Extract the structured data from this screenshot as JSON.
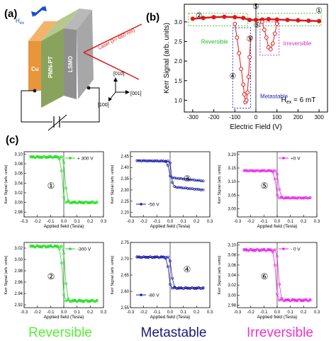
{
  "panel_labels": {
    "a": "(a)",
    "b": "(b)",
    "c": "(c)"
  },
  "panel_a": {
    "hex_label": "H",
    "hex_sub": "ex",
    "layers": [
      "Cu",
      "PMN-PT",
      "LSMO"
    ],
    "laser_label": "Laser (λ= 660 nm)",
    "axes": [
      "[010]",
      "[001]",
      "[100]"
    ]
  },
  "panel_b_chart": {
    "type": "scatter",
    "xlabel": "Electric Field (V)",
    "ylabel": "Kerr Signal (arb. units)",
    "xticks": [
      "-300",
      "-200",
      "-100",
      "0",
      "100",
      "200",
      "300"
    ],
    "yticks": [
      "1.0",
      "1.5",
      "2.0",
      "2.5",
      "3.0"
    ],
    "xlim": [
      -340,
      340
    ],
    "ylim": [
      0.7,
      3.45
    ],
    "annotation": "H",
    "annotation_sub": "ex",
    "annotation_value": " = 6 mT",
    "labels": {
      "reversible": "Reversible",
      "irreversible": "Irreversible",
      "metastable": "Metastable"
    },
    "point_markers": [
      "①",
      "②",
      "③",
      "④",
      "⑤",
      "⑥"
    ],
    "forward_branch": {
      "x": [
        -300,
        -250,
        -200,
        -150,
        -100,
        -60,
        -30,
        0,
        30,
        60,
        100,
        150,
        200,
        250,
        300
      ],
      "y": [
        3.08,
        3.1,
        3.12,
        3.13,
        3.12,
        3.1,
        3.05,
        3.05,
        3.06,
        3.07,
        3.06,
        3.05,
        3.04,
        3.03,
        3.02
      ]
    },
    "dip_branch": {
      "x": [
        -100,
        -90,
        -80,
        -70,
        -60,
        -55,
        -50,
        -45,
        -40,
        -35,
        -30,
        -25
      ],
      "y": [
        2.95,
        2.6,
        2.2,
        1.8,
        1.4,
        1.15,
        0.95,
        1.0,
        1.2,
        1.6,
        2.1,
        2.6
      ]
    },
    "irreversible_branch": {
      "x": [
        30,
        40,
        50,
        60,
        70,
        80,
        90,
        100
      ],
      "y": [
        3.0,
        2.8,
        2.6,
        2.35,
        2.3,
        2.45,
        2.7,
        2.95
      ]
    }
  },
  "loops": [
    {
      "x_ticks": [
        "-0.3",
        "-0.2",
        "-0.1",
        "0.0",
        "0.1",
        "0.2",
        "0.3"
      ],
      "y_ticks": [
        "3.10",
        "3.08",
        "3.06",
        "3.04",
        "3.02",
        "3.00",
        "2.98"
      ],
      "ylim": [
        2.97,
        3.105
      ],
      "legend": "+ 300 V",
      "marker": "①",
      "color": "#22dd22",
      "top": 3.094,
      "bottom": 3.0,
      "ylabel": "Kerr Signal (arb. units)",
      "xlabel": "Applied field (Tesla)"
    },
    {
      "x_ticks": [
        "-0.3",
        "-0.2",
        "-0.1",
        "0.0",
        "0.1",
        "0.2",
        "0.3"
      ],
      "y_ticks": [
        "2.45",
        "2.40",
        "2.35",
        "2.30",
        "2.25",
        "2.20"
      ],
      "ylim": [
        2.18,
        2.47
      ],
      "legend": "-50 V",
      "marker": "③",
      "color": "#1a1aa8",
      "top": 2.43,
      "bottom": 2.37,
      "ylabel": "Kerr Signal (arb. units)",
      "xlabel": "Applied field (Tesla)"
    },
    {
      "x_ticks": [
        "-0.3",
        "-0.2",
        "-0.1",
        "0.0",
        "0.1",
        "0.2",
        "0.3"
      ],
      "y_ticks": [
        "3.20",
        "3.15",
        "3.10",
        "3.05",
        "3.00"
      ],
      "ylim": [
        2.97,
        3.21
      ],
      "legend": "+0 V",
      "marker": "⑤",
      "color": "#ee22ee",
      "top": 3.14,
      "bottom": 3.04,
      "ylabel": "Kerr Signal (arb. units)",
      "xlabel": "Applied field (Tesla)"
    },
    {
      "x_ticks": [
        "-0.3",
        "-0.2",
        "-0.1",
        "0.0",
        "0.1",
        "0.2",
        "0.3"
      ],
      "y_ticks": [
        "3.02",
        "3.00",
        "2.98",
        "2.96",
        "2.94",
        "2.92"
      ],
      "ylim": [
        2.915,
        3.03
      ],
      "legend": "-300 V",
      "marker": "②",
      "color": "#22dd22",
      "top": 3.023,
      "bottom": 2.927,
      "ylabel": "Kerr Signal (arb. units)",
      "xlabel": "Applied field (Tesla)"
    },
    {
      "x_ticks": [
        "-0.3",
        "-0.2",
        "-0.1",
        "0.0",
        "0.1",
        "0.2",
        "0.3"
      ],
      "y_ticks": [
        "2.75",
        "2.70",
        "2.65",
        "2.60",
        "2.55"
      ],
      "ylim": [
        2.55,
        2.75
      ],
      "legend": "-80 V",
      "marker": "④",
      "color": "#1a1aa8",
      "top": 2.705,
      "bottom": 2.61,
      "ylabel": "Kerr Signal (arb. units)",
      "xlabel": "Applied field (Tesla)"
    },
    {
      "x_ticks": [
        "-0.3",
        "-0.2",
        "-0.1",
        "0.0",
        "0.1",
        "0.2",
        "0.3"
      ],
      "y_ticks": [
        "3.10",
        "3.08",
        "3.06",
        "3.04",
        "3.02",
        "3.00",
        "2.98"
      ],
      "ylim": [
        2.975,
        3.105
      ],
      "legend": "- 0 V",
      "marker": "⑥",
      "color": "#ee22ee",
      "top": 3.09,
      "bottom": 2.99,
      "ylabel": "Kerr Signal (arb. units)",
      "xlabel": "Applied field (Tesla)"
    }
  ],
  "column_titles": [
    {
      "text": "Reversible",
      "color": "#55ee33"
    },
    {
      "text": "Metastable",
      "color": "#1a1a7a"
    },
    {
      "text": "Irreversible",
      "color": "#ee33cc"
    }
  ]
}
